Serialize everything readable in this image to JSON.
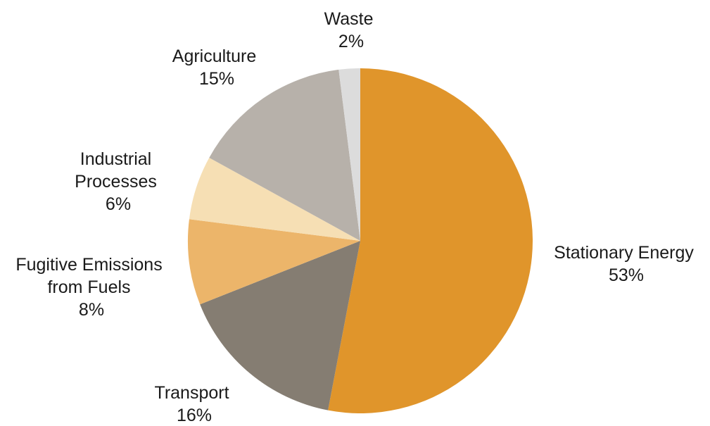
{
  "chart_data": {
    "type": "pie",
    "title": "",
    "start_angle_deg": 0,
    "direction": "clockwise",
    "slices": [
      {
        "key": "stationary",
        "label_lines": [
          "Stationary Energy"
        ],
        "percent_label": "53%",
        "value": 53,
        "color": "#e0952b"
      },
      {
        "key": "transport",
        "label_lines": [
          "Transport"
        ],
        "percent_label": "16%",
        "value": 16,
        "color": "#857d72"
      },
      {
        "key": "fugitive",
        "label_lines": [
          "Fugitive Emissions",
          "from Fuels"
        ],
        "percent_label": "8%",
        "value": 8,
        "color": "#ecb56a"
      },
      {
        "key": "industrial",
        "label_lines": [
          "Industrial",
          "Processes"
        ],
        "percent_label": "6%",
        "value": 6,
        "color": "#f6dfb4"
      },
      {
        "key": "agriculture",
        "label_lines": [
          "Agriculture"
        ],
        "percent_label": "15%",
        "value": 15,
        "color": "#b7b1aa"
      },
      {
        "key": "waste",
        "label_lines": [
          "Waste"
        ],
        "percent_label": "2%",
        "value": 2,
        "color": "#dcdcdc"
      }
    ]
  }
}
